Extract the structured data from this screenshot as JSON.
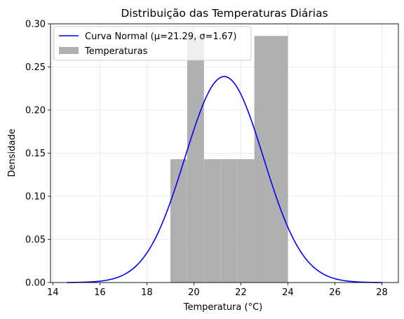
{
  "chart_data": {
    "type": "bar",
    "title": "Distribuição das Temperaturas Diárias",
    "xlabel": "Temperatura (°C)",
    "ylabel": "Densidade",
    "xlim": [
      13.9,
      28.7
    ],
    "ylim": [
      0,
      0.3
    ],
    "xticks": [
      14,
      16,
      18,
      20,
      22,
      24,
      26,
      28
    ],
    "xtick_labels": [
      "14",
      "16",
      "18",
      "20",
      "22",
      "24",
      "26",
      "28"
    ],
    "yticks": [
      0,
      0.05,
      0.1,
      0.15,
      0.2,
      0.25,
      0.3
    ],
    "ytick_labels": [
      "0.00",
      "0.05",
      "0.10",
      "0.15",
      "0.20",
      "0.25",
      "0.30"
    ],
    "grid": true,
    "legend_position": "top-left",
    "histogram": {
      "name": "Temperaturas",
      "color": "#b0b0b0",
      "bin_edges": [
        19.0,
        19.714,
        20.429,
        21.143,
        21.857,
        22.571,
        23.286,
        24.0
      ],
      "densities": [
        0.143,
        0.286,
        0.143,
        0.143,
        0.143,
        0.286,
        0.286
      ]
    },
    "curve": {
      "name": "Curva Normal (μ=21.29, σ=1.67)",
      "color": "#0000ff",
      "mu": 21.29,
      "sigma": 1.67,
      "x_range": [
        14.6,
        28.0
      ]
    }
  }
}
